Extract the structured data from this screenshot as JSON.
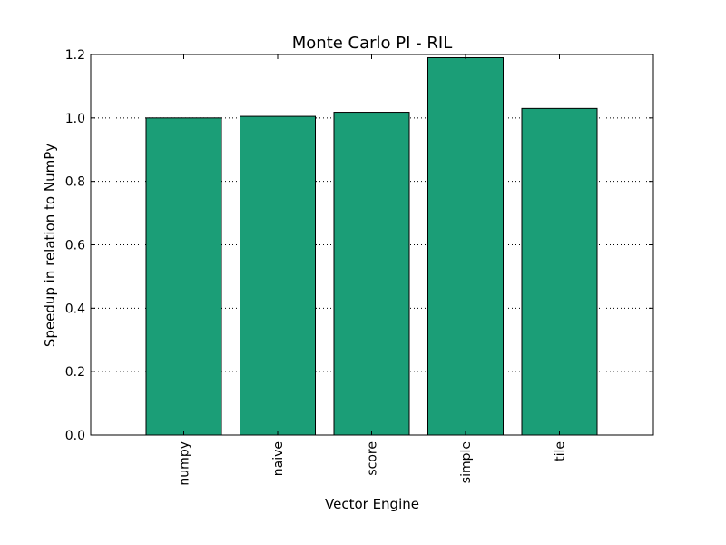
{
  "chart_data": {
    "type": "bar",
    "title": "Monte Carlo PI - RIL",
    "xlabel": "Vector Engine",
    "ylabel": "Speedup in relation to NumPy",
    "categories": [
      "numpy",
      "naive",
      "score",
      "simple",
      "tile"
    ],
    "values": [
      1.0,
      1.005,
      1.018,
      1.19,
      1.03
    ],
    "ylim": [
      0,
      1.2
    ],
    "yticks": [
      "0.0",
      "0.2",
      "0.4",
      "0.6",
      "0.8",
      "1.0",
      "1.2"
    ],
    "grid": true,
    "bar_color": "#1b9e77",
    "edge_color": "#000000"
  }
}
